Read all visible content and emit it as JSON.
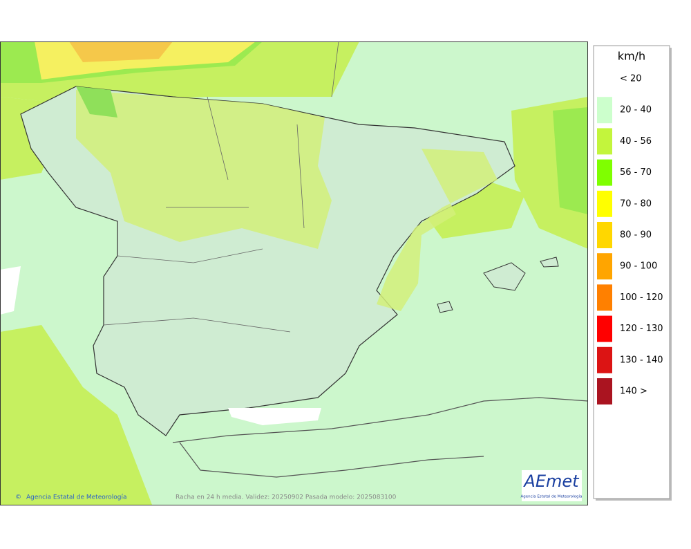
{
  "legend": {
    "title": "km/h",
    "items": [
      {
        "label": "< 20",
        "color": null
      },
      {
        "label": "20 - 40",
        "color": "#ccffcc"
      },
      {
        "label": "40 - 56",
        "color": "#c3f53c"
      },
      {
        "label": "56 - 70",
        "color": "#7fff00"
      },
      {
        "label": "70 - 80",
        "color": "#ffff00"
      },
      {
        "label": "80 - 90",
        "color": "#ffd700"
      },
      {
        "label": "90 - 100",
        "color": "#ffa500"
      },
      {
        "label": "100 - 120",
        "color": "#ff8000"
      },
      {
        "label": "120 - 130",
        "color": "#ff0000"
      },
      {
        "label": "130 - 140",
        "color": "#dc1414"
      },
      {
        "label": "140 >",
        "color": "#aa1420"
      }
    ]
  },
  "credit": "Agencia Estatal de Meteorología",
  "caption": "Racha en 24 h media. Validez: 20250902 Pasada modelo: 2025083100",
  "logo": {
    "name": "AEmet",
    "subtitle": "Agencia Estatal de Meteorología"
  }
}
